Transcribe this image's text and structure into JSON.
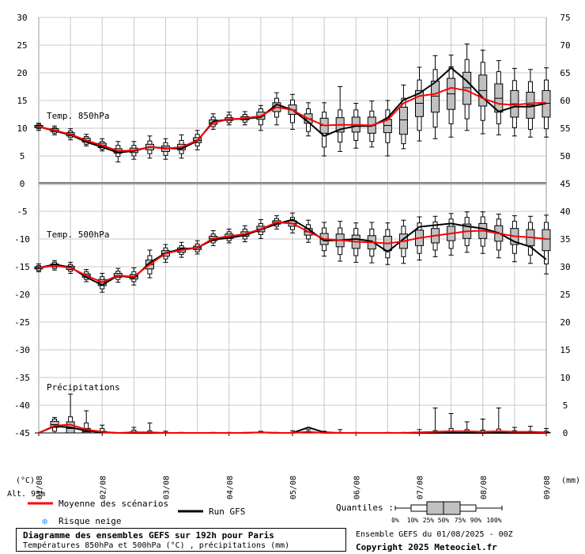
{
  "chart_data": {
    "type": "ensemble-boxplot",
    "title": "Diagramme des ensembles GEFS sur 192h pour Paris",
    "subtitle": "Températures 850hPa et 500hPa (°C) , précipitations (mm)",
    "run_info": "Ensemble GEFS du 01/08/2025 - 00Z",
    "copyright": "Copyright 2025 Meteociel.fr",
    "altitude": "Alt. 93m",
    "left_axis_unit": "(°C)",
    "right_axis_unit": "(mm)",
    "left_ticks": [
      30,
      25,
      20,
      15,
      10,
      5,
      0,
      -5,
      -10,
      -15,
      -20,
      -25,
      -30,
      -35,
      -40,
      -45
    ],
    "right_ticks": [
      75,
      70,
      65,
      60,
      55,
      50,
      45,
      40,
      35,
      30,
      25,
      20,
      15,
      10,
      5,
      0
    ],
    "x_labels": [
      "01/08",
      "02/08",
      "03/08",
      "04/08",
      "05/08",
      "06/08",
      "07/08",
      "08/08",
      "09/08"
    ],
    "panel_labels": {
      "t850": "Temp. 850hPa",
      "t500": "Temp. 500hPa",
      "precip": "Précipitations"
    },
    "legend": {
      "mean": "Moyenne des scénarios",
      "run": "Run GFS",
      "snow": "Risque neige",
      "quantiles_label": "Quantiles :",
      "quantiles": [
        "0%",
        "10%",
        "25%",
        "50%",
        "75%",
        "90%",
        "100%"
      ]
    },
    "colors": {
      "mean": "#ff0000",
      "run": "#000000",
      "box": "#c0c0c0",
      "grid": "#c0c0c0",
      "snow": "#3399ff"
    },
    "t850": {
      "hours": [
        0,
        6,
        12,
        18,
        24,
        30,
        36,
        42,
        48,
        54,
        60,
        66,
        72,
        78,
        84,
        90,
        96,
        102,
        108,
        114,
        120,
        126,
        132,
        138,
        144,
        150,
        156,
        162,
        168,
        174,
        180,
        186,
        192
      ],
      "mean": [
        10.3,
        9.6,
        8.9,
        7.8,
        6.9,
        5.9,
        6.0,
        6.6,
        6.3,
        6.6,
        7.8,
        11.0,
        11.6,
        11.8,
        12.2,
        13.8,
        13.3,
        11.7,
        10.5,
        10.6,
        10.6,
        10.5,
        11.5,
        14.5,
        15.8,
        16.2,
        17.3,
        16.8,
        15.4,
        14.4,
        14.2,
        14.5,
        14.6
      ],
      "run": [
        10.3,
        9.5,
        8.8,
        7.5,
        6.6,
        5.6,
        5.9,
        6.6,
        6.4,
        6.3,
        7.7,
        11.2,
        11.6,
        11.7,
        12.0,
        14.3,
        13.3,
        11.1,
        8.6,
        9.8,
        10.4,
        10.4,
        11.9,
        15.1,
        16.3,
        18.3,
        20.9,
        18.5,
        15.5,
        13.0,
        13.9,
        13.9,
        14.5
      ],
      "boxes": [
        [
          9.6,
          9.9,
          10.1,
          10.3,
          10.5,
          10.7,
          10.9
        ],
        [
          8.8,
          9.1,
          9.4,
          9.6,
          9.9,
          10.1,
          10.4
        ],
        [
          7.9,
          8.3,
          8.6,
          8.9,
          9.2,
          9.5,
          9.9
        ],
        [
          6.8,
          7.1,
          7.5,
          7.8,
          8.2,
          8.5,
          8.9
        ],
        [
          5.9,
          6.2,
          6.5,
          6.9,
          7.3,
          7.6,
          8.1
        ],
        [
          3.9,
          4.9,
          5.5,
          5.9,
          6.3,
          6.9,
          7.6
        ],
        [
          4.4,
          5.0,
          5.6,
          6.0,
          6.4,
          6.9,
          7.6
        ],
        [
          4.6,
          5.4,
          6.1,
          6.6,
          7.1,
          7.7,
          8.6
        ],
        [
          4.4,
          5.1,
          5.8,
          6.3,
          6.8,
          7.4,
          8.1
        ],
        [
          4.6,
          5.4,
          6.1,
          6.6,
          7.1,
          7.8,
          8.8
        ],
        [
          6.1,
          6.8,
          7.4,
          7.8,
          8.3,
          8.9,
          9.6
        ],
        [
          9.8,
          10.3,
          10.7,
          11.0,
          11.5,
          12.0,
          12.6
        ],
        [
          10.6,
          11.0,
          11.4,
          11.6,
          11.9,
          12.4,
          12.9
        ],
        [
          10.6,
          11.1,
          11.5,
          11.8,
          12.1,
          12.5,
          13.0
        ],
        [
          9.6,
          10.6,
          11.6,
          12.2,
          12.9,
          13.5,
          14.1
        ],
        [
          10.6,
          12.0,
          13.0,
          13.8,
          14.6,
          15.4,
          16.4
        ],
        [
          9.8,
          11.0,
          12.5,
          13.3,
          14.2,
          15.1,
          16.1
        ],
        [
          8.6,
          9.4,
          10.9,
          11.7,
          12.6,
          13.5,
          14.6
        ],
        [
          5.0,
          6.6,
          9.1,
          10.5,
          11.8,
          12.9,
          14.6
        ],
        [
          5.8,
          7.5,
          9.3,
          10.6,
          11.9,
          13.3,
          17.5
        ],
        [
          6.4,
          7.8,
          9.3,
          10.6,
          12.0,
          13.3,
          14.5
        ],
        [
          6.6,
          7.6,
          9.1,
          10.5,
          12.0,
          13.1,
          14.9
        ],
        [
          5.0,
          7.4,
          9.2,
          10.5,
          11.6,
          13.3,
          15.0
        ],
        [
          6.3,
          7.2,
          8.9,
          11.5,
          13.8,
          15.4,
          17.8
        ],
        [
          7.7,
          9.6,
          12.1,
          14.5,
          16.8,
          18.7,
          21.0
        ],
        [
          8.1,
          10.2,
          12.9,
          15.8,
          18.5,
          20.6,
          23.1
        ],
        [
          8.4,
          10.8,
          13.4,
          16.2,
          19.0,
          21.1,
          23.2
        ],
        [
          9.6,
          11.7,
          14.3,
          17.3,
          20.1,
          22.4,
          25.2
        ],
        [
          9.0,
          11.4,
          14.0,
          16.8,
          19.6,
          21.9,
          24.1
        ],
        [
          8.8,
          10.8,
          12.9,
          15.4,
          18.0,
          20.2,
          22.2
        ],
        [
          8.6,
          10.1,
          12.0,
          14.4,
          16.8,
          18.6,
          20.8
        ],
        [
          8.4,
          9.8,
          11.8,
          14.2,
          16.5,
          18.4,
          20.6
        ],
        [
          8.4,
          9.9,
          12.0,
          14.5,
          16.8,
          18.7,
          20.9
        ]
      ]
    },
    "t500": {
      "hours": [
        0,
        6,
        12,
        18,
        24,
        30,
        36,
        42,
        48,
        54,
        60,
        66,
        72,
        78,
        84,
        90,
        96,
        102,
        108,
        114,
        120,
        126,
        132,
        138,
        144,
        150,
        156,
        162,
        168,
        174,
        180,
        186,
        192
      ],
      "mean": [
        -15.2,
        -14.8,
        -15.2,
        -16.6,
        -17.8,
        -16.6,
        -16.8,
        -14.6,
        -12.6,
        -12.0,
        -11.6,
        -9.9,
        -9.5,
        -9.1,
        -8.2,
        -7.0,
        -7.2,
        -8.7,
        -10.0,
        -10.2,
        -10.5,
        -10.6,
        -10.8,
        -10.4,
        -9.8,
        -9.4,
        -9.0,
        -8.6,
        -8.5,
        -9.0,
        -9.5,
        -9.7,
        -10.0
      ],
      "run": [
        -15.2,
        -14.6,
        -15.1,
        -16.9,
        -18.3,
        -16.6,
        -17.0,
        -14.3,
        -12.5,
        -11.8,
        -11.6,
        -10.1,
        -9.8,
        -9.3,
        -8.3,
        -7.3,
        -6.5,
        -8.2,
        -10.3,
        -10.2,
        -10.0,
        -10.4,
        -12.3,
        -10.0,
        -7.8,
        -7.5,
        -7.2,
        -7.7,
        -8.1,
        -8.9,
        -10.5,
        -11.4,
        -13.7
      ],
      "boxes": [
        [
          -15.9,
          -15.7,
          -15.4,
          -15.2,
          -15.0,
          -14.8,
          -14.5
        ],
        [
          -15.6,
          -15.3,
          -15.0,
          -14.8,
          -14.5,
          -14.2,
          -13.9
        ],
        [
          -16.2,
          -15.8,
          -15.5,
          -15.2,
          -14.9,
          -14.6,
          -14.2
        ],
        [
          -17.7,
          -17.3,
          -16.9,
          -16.6,
          -16.3,
          -15.9,
          -15.5
        ],
        [
          -19.6,
          -19.0,
          -18.4,
          -17.8,
          -17.3,
          -16.8,
          -16.2
        ],
        [
          -17.8,
          -17.3,
          -16.9,
          -16.6,
          -16.2,
          -15.8,
          -15.3
        ],
        [
          -18.3,
          -17.7,
          -17.2,
          -16.8,
          -16.4,
          -15.9,
          -15.2
        ],
        [
          -17.0,
          -16.3,
          -15.4,
          -14.6,
          -13.8,
          -13.0,
          -12.0
        ],
        [
          -14.2,
          -13.6,
          -13.1,
          -12.6,
          -12.1,
          -11.6,
          -11.0
        ],
        [
          -13.3,
          -12.8,
          -12.4,
          -12.0,
          -11.6,
          -11.2,
          -10.6
        ],
        [
          -12.7,
          -12.3,
          -11.9,
          -11.6,
          -11.3,
          -10.9,
          -10.3
        ],
        [
          -11.2,
          -10.7,
          -10.3,
          -9.9,
          -9.5,
          -9.1,
          -8.5
        ],
        [
          -10.7,
          -10.3,
          -9.9,
          -9.5,
          -9.1,
          -8.7,
          -8.2
        ],
        [
          -10.5,
          -10.0,
          -9.5,
          -9.1,
          -8.7,
          -8.2,
          -7.6
        ],
        [
          -9.9,
          -9.2,
          -8.7,
          -8.2,
          -7.7,
          -7.2,
          -6.5
        ],
        [
          -8.2,
          -7.7,
          -7.3,
          -7.0,
          -6.7,
          -6.3,
          -5.8
        ],
        [
          -8.9,
          -8.3,
          -7.7,
          -7.2,
          -6.7,
          -6.1,
          -5.3
        ],
        [
          -10.6,
          -10.0,
          -9.3,
          -8.7,
          -8.1,
          -7.4,
          -6.6
        ],
        [
          -13.1,
          -12.1,
          -11.0,
          -10.0,
          -9.0,
          -8.0,
          -7.0
        ],
        [
          -14.0,
          -12.8,
          -11.4,
          -10.2,
          -9.1,
          -8.0,
          -6.8
        ],
        [
          -14.2,
          -13.0,
          -11.7,
          -10.5,
          -9.3,
          -8.1,
          -7.1
        ],
        [
          -14.3,
          -13.1,
          -11.8,
          -10.6,
          -9.4,
          -8.2,
          -7.0
        ],
        [
          -14.6,
          -13.4,
          -12.1,
          -10.8,
          -9.5,
          -8.3,
          -7.1
        ],
        [
          -14.4,
          -13.2,
          -11.7,
          -10.4,
          -9.1,
          -7.7,
          -6.6
        ],
        [
          -13.8,
          -12.6,
          -11.2,
          -9.8,
          -8.4,
          -7.1,
          -6.0
        ],
        [
          -13.2,
          -12.0,
          -10.7,
          -9.4,
          -8.1,
          -6.9,
          -5.9
        ],
        [
          -12.9,
          -11.7,
          -10.3,
          -9.0,
          -7.7,
          -6.4,
          -5.4
        ],
        [
          -12.4,
          -11.2,
          -9.9,
          -8.6,
          -7.3,
          -6.1,
          -5.1
        ],
        [
          -12.6,
          -11.3,
          -9.9,
          -8.5,
          -7.2,
          -6.0,
          -5.1
        ],
        [
          -13.4,
          -12.0,
          -10.4,
          -9.0,
          -7.6,
          -6.4,
          -5.5
        ],
        [
          -14.1,
          -12.6,
          -11.0,
          -9.5,
          -8.1,
          -6.8,
          -5.8
        ],
        [
          -14.4,
          -12.9,
          -11.2,
          -9.7,
          -8.3,
          -7.0,
          -5.9
        ],
        [
          -16.3,
          -14.5,
          -12.1,
          -10.0,
          -8.3,
          -7.0,
          -5.7
        ]
      ]
    },
    "precip": {
      "hours": [
        0,
        6,
        12,
        18,
        24,
        30,
        36,
        42,
        48,
        54,
        60,
        66,
        72,
        78,
        84,
        90,
        96,
        102,
        108,
        114,
        120,
        126,
        132,
        138,
        144,
        150,
        156,
        162,
        168,
        174,
        180,
        186,
        192
      ],
      "mean": [
        0.0,
        1.3,
        1.5,
        0.6,
        0.2,
        0.0,
        0.1,
        0.1,
        0.0,
        0.0,
        0.0,
        0.0,
        0.0,
        0.0,
        0.1,
        0.0,
        0.0,
        0.2,
        0.0,
        0.0,
        0.0,
        0.0,
        0.0,
        0.0,
        0.1,
        0.2,
        0.3,
        0.3,
        0.2,
        0.3,
        0.2,
        0.2,
        0.1
      ],
      "run": [
        0.0,
        1.2,
        1.0,
        0.4,
        0.1,
        0.0,
        0.0,
        0.0,
        0.0,
        0.0,
        0.0,
        0.0,
        0.0,
        0.0,
        0.1,
        0.0,
        0.0,
        1.0,
        0.1,
        0.0,
        0.0,
        0.0,
        0.0,
        0.0,
        0.0,
        0.0,
        0.0,
        0.0,
        0.0,
        0.0,
        0.0,
        0.0,
        0.0
      ],
      "boxes": [
        [
          0,
          0,
          0,
          0,
          0,
          0,
          0
        ],
        [
          0,
          0.3,
          1.0,
          1.5,
          2.1,
          2.5,
          2.8
        ],
        [
          0,
          0,
          0,
          0.8,
          2.0,
          2.9,
          7.0
        ],
        [
          0,
          0,
          0,
          0.2,
          0.8,
          1.8,
          4.0
        ],
        [
          0,
          0,
          0,
          0,
          0.3,
          0.8,
          1.4
        ],
        [
          0,
          0,
          0,
          0,
          0,
          0,
          0
        ],
        [
          0,
          0,
          0,
          0,
          0.2,
          0.5,
          1.0
        ],
        [
          0,
          0,
          0,
          0,
          0.1,
          0.4,
          1.8
        ],
        [
          0,
          0,
          0,
          0,
          0,
          0.1,
          0.3
        ],
        [
          0,
          0,
          0,
          0,
          0,
          0,
          0.1
        ],
        [
          0,
          0,
          0,
          0,
          0,
          0,
          0
        ],
        [
          0,
          0,
          0,
          0,
          0,
          0,
          0.1
        ],
        [
          0,
          0,
          0,
          0,
          0,
          0,
          0.1
        ],
        [
          0,
          0,
          0,
          0,
          0,
          0,
          0.1
        ],
        [
          0,
          0,
          0,
          0,
          0,
          0.1,
          0.3
        ],
        [
          0,
          0,
          0,
          0,
          0,
          0,
          0.1
        ],
        [
          0,
          0,
          0,
          0,
          0,
          0.1,
          0.4
        ],
        [
          0,
          0,
          0,
          0,
          0.1,
          0.3,
          0.6
        ],
        [
          0,
          0,
          0,
          0,
          0,
          0.1,
          0.3
        ],
        [
          0,
          0,
          0,
          0,
          0,
          0.1,
          0.6
        ],
        [
          0,
          0,
          0,
          0,
          0,
          0,
          0.1
        ],
        [
          0,
          0,
          0,
          0,
          0,
          0,
          0
        ],
        [
          0,
          0,
          0,
          0,
          0,
          0,
          0.1
        ],
        [
          0,
          0,
          0,
          0,
          0,
          0,
          0.1
        ],
        [
          0,
          0,
          0,
          0,
          0,
          0.1,
          0.6
        ],
        [
          0,
          0,
          0,
          0,
          0.1,
          0.4,
          4.5
        ],
        [
          0,
          0,
          0,
          0,
          0.2,
          0.8,
          3.5
        ],
        [
          0,
          0,
          0,
          0,
          0.2,
          0.6,
          2.0
        ],
        [
          0,
          0,
          0,
          0,
          0.1,
          0.5,
          2.5
        ],
        [
          0,
          0,
          0,
          0,
          0.2,
          0.7,
          4.5
        ],
        [
          0,
          0,
          0,
          0,
          0.1,
          0.4,
          1.0
        ],
        [
          0,
          0,
          0,
          0,
          0.1,
          0.3,
          1.2
        ],
        [
          0,
          0,
          0,
          0,
          0.1,
          0.3,
          0.8
        ]
      ]
    }
  }
}
